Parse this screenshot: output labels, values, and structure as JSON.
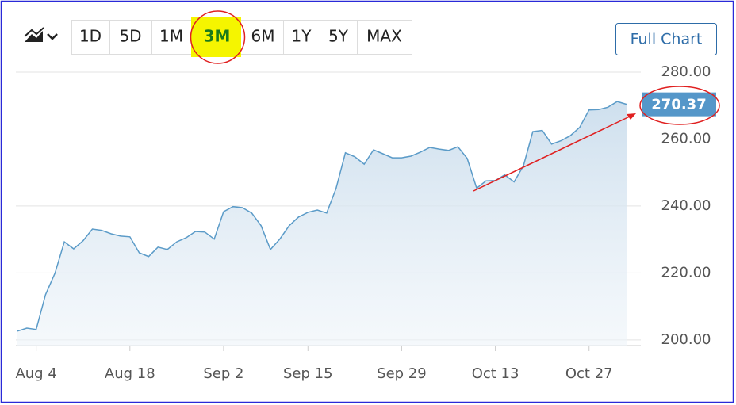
{
  "toolbar": {
    "ranges": [
      "1D",
      "5D",
      "1M",
      "3M",
      "6M",
      "1Y",
      "5Y",
      "MAX"
    ],
    "full_chart": "Full Chart"
  },
  "chart_data": {
    "type": "area",
    "categories": [
      null,
      null,
      "Aug 4",
      null,
      null,
      null,
      null,
      null,
      null,
      null,
      null,
      null,
      "Aug 18",
      null,
      null,
      null,
      null,
      null,
      null,
      null,
      null,
      null,
      "Sep 2",
      null,
      null,
      null,
      null,
      null,
      null,
      null,
      null,
      "Sep 15",
      null,
      null,
      null,
      null,
      null,
      null,
      null,
      null,
      null,
      "Sep 29",
      null,
      null,
      null,
      null,
      null,
      null,
      null,
      null,
      null,
      "Oct 13",
      null,
      null,
      null,
      null,
      null,
      null,
      null,
      null,
      null,
      "Oct 27",
      null,
      null,
      null,
      null
    ],
    "series": [
      {
        "color": "#5b9bc8",
        "values": [
          202.6,
          203.5,
          203.1,
          213.5,
          219.9,
          229.3,
          227.2,
          229.6,
          233.1,
          232.7,
          231.7,
          231.0,
          230.8,
          226.0,
          224.9,
          227.7,
          227.0,
          229.3,
          230.5,
          232.4,
          232.2,
          230.1,
          238.3,
          239.8,
          239.5,
          237.9,
          234.1,
          227.0,
          230.1,
          234.1,
          236.7,
          238.1,
          238.8,
          237.9,
          245.2,
          255.9,
          254.7,
          252.5,
          256.8,
          255.6,
          254.4,
          254.4,
          254.9,
          256.1,
          257.5,
          257.0,
          256.6,
          257.7,
          254.2,
          245.3,
          247.5,
          247.6,
          249.3,
          247.2,
          252.0,
          262.2,
          262.6,
          258.5,
          259.5,
          261.0,
          263.5,
          268.7,
          268.8,
          269.5,
          271.2,
          270.37
        ]
      }
    ],
    "ylim": [
      198.3,
      282.6
    ],
    "yticks": [
      {
        "value": 200,
        "label": "200.00"
      },
      {
        "value": 220,
        "label": "220.00"
      },
      {
        "value": 240,
        "label": "240.00"
      },
      {
        "value": 260,
        "label": "260.00"
      },
      {
        "value": 280,
        "label": "280.00"
      }
    ],
    "grid": true
  }
}
